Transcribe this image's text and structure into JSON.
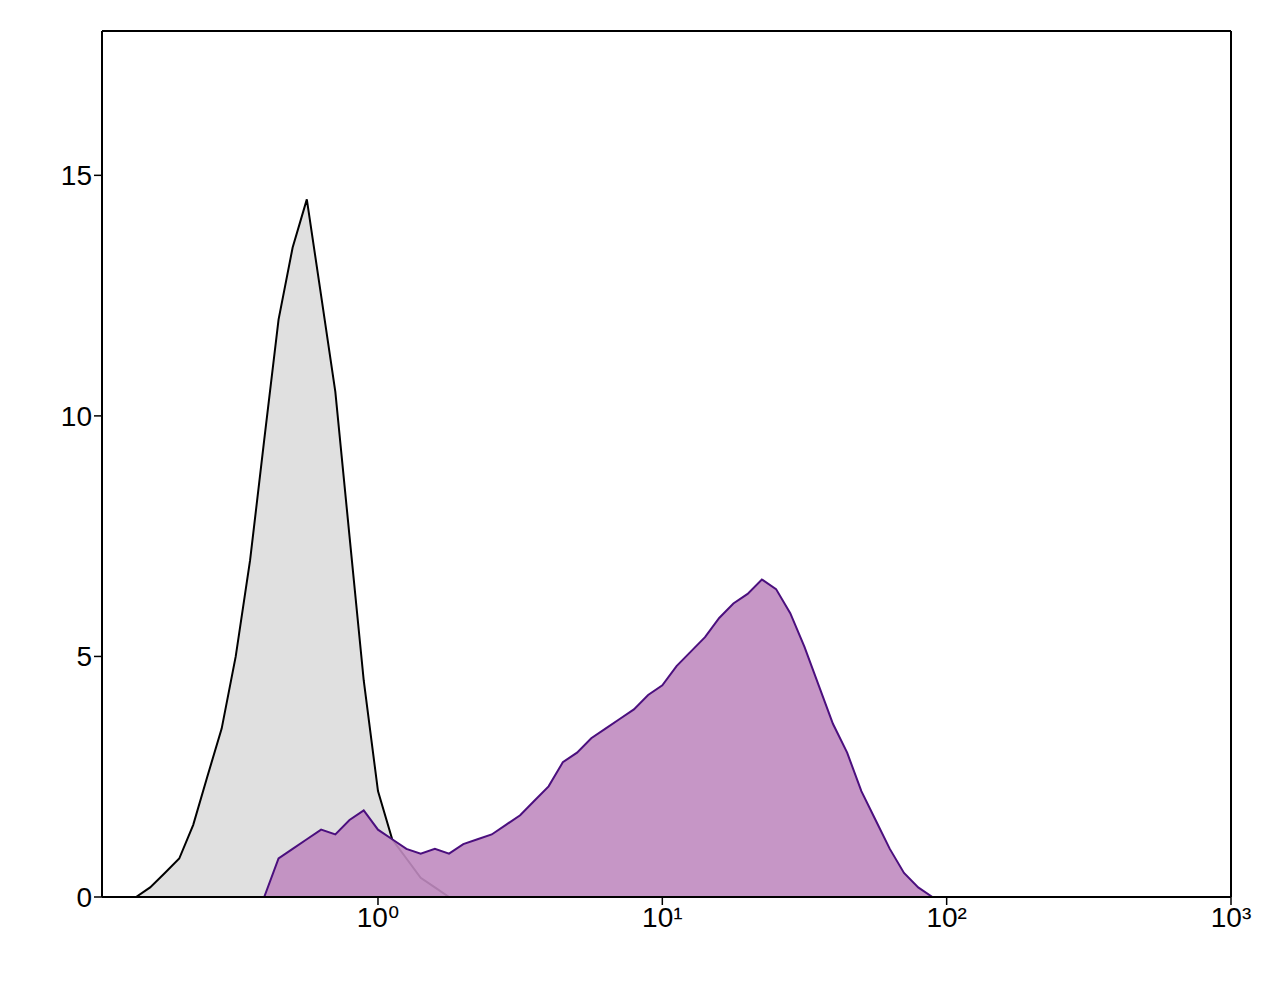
{
  "chart_data": {
    "type": "area",
    "log": "x",
    "grid": false,
    "xlim": [
      0.107,
      1000
    ],
    "ylim": [
      0,
      18
    ],
    "xticks": [
      {
        "value": 1,
        "label": "10⁰"
      },
      {
        "value": 10,
        "label": "10¹"
      },
      {
        "value": 100,
        "label": "10²"
      },
      {
        "value": 1000,
        "label": "10³"
      }
    ],
    "yticks": [
      0,
      5,
      10,
      15
    ],
    "x": [
      0.141,
      0.158,
      0.178,
      0.2,
      0.224,
      0.251,
      0.282,
      0.316,
      0.355,
      0.398,
      0.447,
      0.501,
      0.562,
      0.631,
      0.708,
      0.794,
      0.891,
      1,
      1.122,
      1.259,
      1.413,
      1.585,
      1.778,
      1.995,
      2.239,
      2.512,
      2.818,
      3.162,
      3.548,
      3.981,
      4.467,
      5.012,
      5.623,
      6.31,
      7.079,
      7.943,
      8.913,
      10,
      11.22,
      12.59,
      14.13,
      15.85,
      17.78,
      19.95,
      22.39,
      25.12,
      28.18,
      31.62,
      35.48,
      39.81,
      44.67,
      50.12,
      56.23,
      63.1,
      70.79,
      79.43,
      89.13,
      100,
      112.2,
      125.9,
      141.3,
      158.5,
      177.8,
      199.5,
      223.9
    ],
    "series": [
      {
        "color": "#000000",
        "values": [
          0,
          0.2,
          0.5,
          0.8,
          1.5,
          2.5,
          3.5,
          5,
          7,
          9.5,
          12,
          13.5,
          14.5,
          12.5,
          10.5,
          7.5,
          4.5,
          2.2,
          1.2,
          0.8,
          0.4,
          0.2,
          0,
          0,
          0,
          0,
          0,
          0,
          0,
          0,
          0,
          0,
          0,
          0,
          0,
          0,
          0,
          0,
          0,
          0,
          0,
          0,
          0,
          0,
          0,
          0,
          0,
          0,
          0,
          0,
          0,
          0,
          0,
          0,
          0,
          0,
          0,
          0,
          0,
          0,
          0,
          0,
          0,
          0,
          0
        ]
      },
      {
        "color": "#4b0f7e",
        "values": [
          0,
          0,
          0,
          0,
          0,
          0,
          0,
          0,
          0,
          0,
          0.8,
          1,
          1.2,
          1.4,
          1.3,
          1.6,
          1.8,
          1.4,
          1.2,
          1,
          0.9,
          1,
          0.9,
          1.1,
          1.2,
          1.3,
          1.5,
          1.7,
          2,
          2.3,
          2.8,
          3,
          3.3,
          3.5,
          3.7,
          3.9,
          4.2,
          4.4,
          4.8,
          5.1,
          5.4,
          5.8,
          6.1,
          6.3,
          6.6,
          6.4,
          5.9,
          5.2,
          4.4,
          3.6,
          3,
          2.2,
          1.6,
          1,
          0.5,
          0.2,
          0,
          0,
          0,
          0,
          0,
          0,
          0,
          0,
          0
        ]
      }
    ]
  }
}
